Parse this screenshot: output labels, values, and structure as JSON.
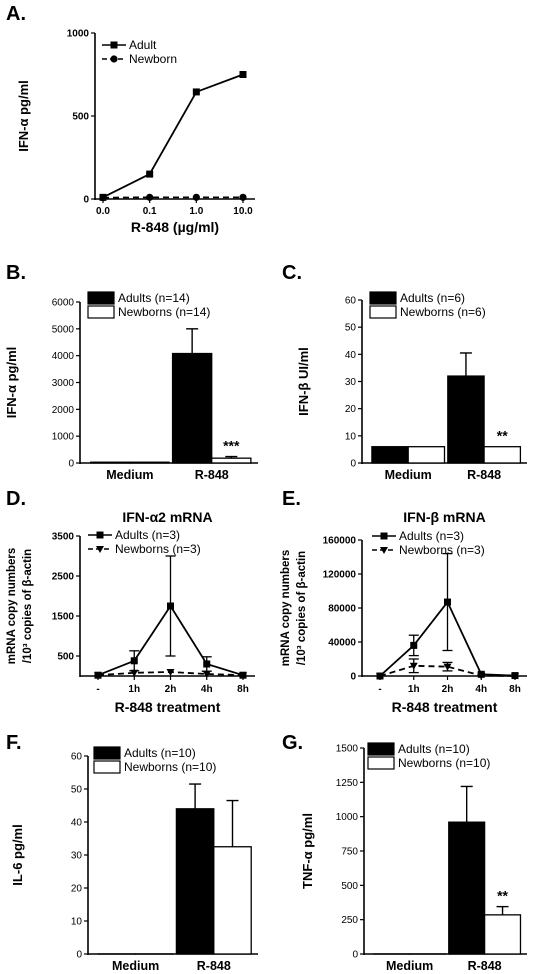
{
  "chart_data": [
    {
      "id": "A",
      "panel_label": "A.",
      "type": "line",
      "x": [
        "0.0",
        "0.1",
        "1.0",
        "10.0"
      ],
      "series": [
        {
          "name": "Adult",
          "values": [
            10,
            150,
            645,
            750
          ],
          "marker": "square",
          "dash": false
        },
        {
          "name": "Newborn",
          "values": [
            8,
            10,
            10,
            10
          ],
          "marker": "circle",
          "dash": true
        }
      ],
      "xlabel": "R-848 (µg/ml)",
      "ylabel": "IFN-α pg/ml",
      "ylim": [
        0,
        1000
      ],
      "yticks": [
        0,
        500,
        1000
      ],
      "legend": "top-left"
    },
    {
      "id": "B",
      "panel_label": "B.",
      "type": "bar",
      "categories": [
        "Medium",
        "R-848"
      ],
      "series": [
        {
          "name": "Adults (n=14)",
          "values": [
            30,
            4080
          ],
          "errors": [
            0,
            920
          ],
          "fill": "#000000"
        },
        {
          "name": "Newborns (n=14)",
          "values": [
            30,
            180
          ],
          "errors": [
            0,
            60
          ],
          "fill": "#ffffff"
        }
      ],
      "annotations": [
        {
          "series": 1,
          "category": 1,
          "text": "***"
        }
      ],
      "ylabel": "IFN-α pg/ml",
      "ylim": [
        0,
        6000
      ],
      "yticks": [
        0,
        1000,
        2000,
        3000,
        4000,
        5000,
        6000
      ],
      "legend": "top-left"
    },
    {
      "id": "C",
      "panel_label": "C.",
      "type": "bar",
      "categories": [
        "Medium",
        "R-848"
      ],
      "series": [
        {
          "name": "Adults (n=6)",
          "values": [
            6,
            32
          ],
          "errors": [
            0,
            8.5
          ],
          "fill": "#000000"
        },
        {
          "name": "Newborns (n=6)",
          "values": [
            6,
            6
          ],
          "errors": [
            0,
            0
          ],
          "fill": "#ffffff"
        }
      ],
      "annotations": [
        {
          "series": 1,
          "category": 1,
          "text": "**"
        }
      ],
      "ylabel": "IFN-β UI/ml",
      "ylim": [
        0,
        60
      ],
      "yticks": [
        0,
        10,
        20,
        30,
        40,
        50,
        60
      ],
      "legend": "top-left"
    },
    {
      "id": "D",
      "panel_label": "D.",
      "type": "line",
      "title": "IFN-α2 mRNA",
      "x": [
        "-",
        "1h",
        "2h",
        "4h",
        "8h"
      ],
      "series": [
        {
          "name": "Adults (n=3)",
          "values": [
            20,
            380,
            1750,
            300,
            20
          ],
          "errors": [
            0,
            250,
            1250,
            180,
            0
          ],
          "marker": "square",
          "dash": false
        },
        {
          "name": "Newborns (n=3)",
          "values": [
            20,
            80,
            100,
            50,
            20
          ],
          "errors": [
            0,
            0,
            0,
            0,
            0
          ],
          "marker": "triangle-down",
          "dash": true
        }
      ],
      "xlabel": "R-848 treatment",
      "ylabel": [
        "mRNA copy numbers",
        "/10³ copies of β-actin"
      ],
      "ylim": [
        0,
        3500
      ],
      "yticks": [
        500,
        1500,
        2500,
        3500
      ],
      "legend": "top-left"
    },
    {
      "id": "E",
      "panel_label": "E.",
      "type": "line",
      "title": "IFN-β mRNA",
      "x": [
        "-",
        "1h",
        "2h",
        "4h",
        "8h"
      ],
      "series": [
        {
          "name": "Adults (n=3)",
          "values": [
            0,
            36000,
            87000,
            2000,
            500
          ],
          "errors": [
            0,
            12000,
            57000,
            0,
            0
          ],
          "marker": "square",
          "dash": false
        },
        {
          "name": "Newborns (n=3)",
          "values": [
            0,
            12000,
            11000,
            500,
            0
          ],
          "errors": [
            0,
            8000,
            5000,
            0,
            0
          ],
          "marker": "triangle-down",
          "dash": true
        }
      ],
      "xlabel": "R-848 treatment",
      "ylabel": [
        "mRNA copy numbers",
        "/10³ copies of β-actin"
      ],
      "ylim": [
        0,
        160000
      ],
      "yticks": [
        0,
        40000,
        80000,
        120000,
        160000
      ],
      "legend": "top-left"
    },
    {
      "id": "F",
      "panel_label": "F.",
      "type": "bar",
      "categories": [
        "Medium",
        "R-848"
      ],
      "series": [
        {
          "name": "Adults (n=10)",
          "values": [
            0,
            44
          ],
          "errors": [
            0,
            7.5
          ],
          "fill": "#000000"
        },
        {
          "name": "Newborns (n=10)",
          "values": [
            0,
            32.5
          ],
          "errors": [
            0,
            14
          ],
          "fill": "#ffffff"
        }
      ],
      "annotations": [],
      "ylabel": "IL-6 pg/ml",
      "ylim": [
        0,
        60
      ],
      "yticks": [
        0,
        10,
        20,
        30,
        40,
        50,
        60
      ],
      "legend": "top-left"
    },
    {
      "id": "G",
      "panel_label": "G.",
      "type": "bar",
      "categories": [
        "Medium",
        "R-848"
      ],
      "series": [
        {
          "name": "Adults (n=10)",
          "values": [
            0,
            960
          ],
          "errors": [
            0,
            260
          ],
          "fill": "#000000"
        },
        {
          "name": "Newborns (n=10)",
          "values": [
            0,
            285
          ],
          "errors": [
            0,
            60
          ],
          "fill": "#ffffff"
        }
      ],
      "annotations": [
        {
          "series": 1,
          "category": 1,
          "text": "**"
        }
      ],
      "ylabel": "TNF-α pg/ml",
      "ylim": [
        0,
        1500
      ],
      "yticks": [
        0,
        250,
        500,
        750,
        1000,
        1250,
        1500
      ],
      "legend": "top-left"
    }
  ]
}
